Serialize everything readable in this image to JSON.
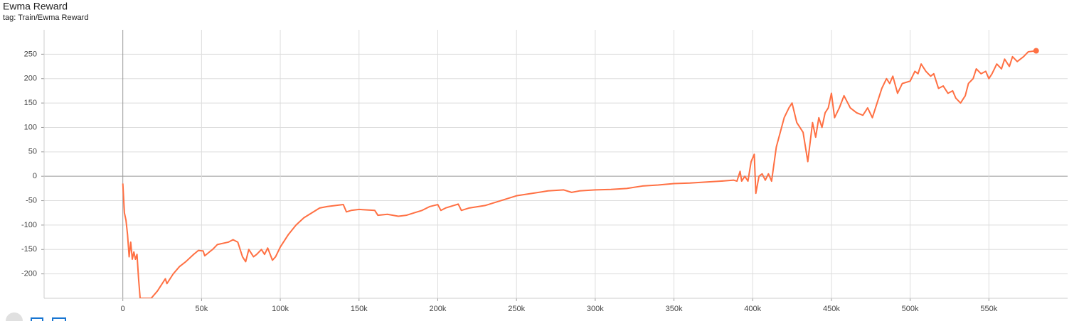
{
  "chart_data": {
    "type": "line",
    "title": "Ewma Reward",
    "subtitle": "tag: Train/Ewma Reward",
    "xlim": [
      -50000,
      600000
    ],
    "ylim": [
      -250,
      300
    ],
    "xticks": [
      {
        "value": 0,
        "label": "0"
      },
      {
        "value": 50000,
        "label": "50k"
      },
      {
        "value": 100000,
        "label": "100k"
      },
      {
        "value": 150000,
        "label": "150k"
      },
      {
        "value": 200000,
        "label": "200k"
      },
      {
        "value": 250000,
        "label": "250k"
      },
      {
        "value": 300000,
        "label": "300k"
      },
      {
        "value": 350000,
        "label": "350k"
      },
      {
        "value": 400000,
        "label": "400k"
      },
      {
        "value": 450000,
        "label": "450k"
      },
      {
        "value": 500000,
        "label": "500k"
      },
      {
        "value": 550000,
        "label": "550k"
      }
    ],
    "yticks": [
      -200,
      -150,
      -100,
      -50,
      0,
      50,
      100,
      150,
      200,
      250
    ],
    "grid": true,
    "series": [
      {
        "color": "#ff7043",
        "x": [
          0,
          1000,
          2000,
          3000,
          4000,
          5000,
          6000,
          7000,
          8000,
          9000,
          10000,
          11000,
          18000,
          22000,
          27000,
          28000,
          32000,
          36000,
          40000,
          45000,
          48000,
          51000,
          52000,
          55000,
          57000,
          60000,
          67000,
          70000,
          73000,
          76000,
          78000,
          80000,
          83000,
          85000,
          88000,
          90000,
          92000,
          95000,
          97000,
          100000,
          105000,
          110000,
          115000,
          120000,
          125000,
          130000,
          140000,
          142000,
          145000,
          150000,
          160000,
          162000,
          168000,
          175000,
          180000,
          185000,
          190000,
          195000,
          200000,
          202000,
          205000,
          210000,
          213000,
          215000,
          220000,
          230000,
          240000,
          250000,
          260000,
          270000,
          280000,
          285000,
          290000,
          300000,
          310000,
          320000,
          330000,
          340000,
          350000,
          360000,
          370000,
          380000,
          388000,
          390000,
          392000,
          393000,
          395000,
          397000,
          399000,
          401000,
          402000,
          404000,
          406000,
          408000,
          410000,
          412000,
          415000,
          420000,
          423000,
          425000,
          428000,
          432000,
          435000,
          438000,
          440000,
          442000,
          444000,
          446000,
          448000,
          450000,
          452000,
          455000,
          458000,
          462000,
          466000,
          470000,
          473000,
          476000,
          478000,
          482000,
          485000,
          487000,
          489000,
          492000,
          495000,
          500000,
          503000,
          505000,
          507000,
          510000,
          513000,
          515000,
          518000,
          521000,
          524000,
          527000,
          529000,
          532000,
          535000,
          537000,
          540000,
          542000,
          545000,
          548000,
          550000,
          552000,
          555000,
          558000,
          560000,
          563000,
          565000,
          568000,
          572000,
          575000,
          580000
        ],
        "values": [
          -15,
          -75,
          -90,
          -120,
          -165,
          -135,
          -170,
          -155,
          -170,
          -160,
          -210,
          -250,
          -250,
          -235,
          -210,
          -220,
          -200,
          -185,
          -175,
          -160,
          -152,
          -153,
          -163,
          -155,
          -150,
          -140,
          -135,
          -130,
          -135,
          -165,
          -175,
          -150,
          -165,
          -160,
          -150,
          -160,
          -147,
          -172,
          -165,
          -145,
          -120,
          -100,
          -85,
          -75,
          -65,
          -62,
          -58,
          -73,
          -70,
          -68,
          -70,
          -80,
          -78,
          -82,
          -80,
          -75,
          -70,
          -62,
          -58,
          -70,
          -65,
          -60,
          -57,
          -70,
          -65,
          -60,
          -50,
          -40,
          -35,
          -30,
          -28,
          -33,
          -30,
          -28,
          -27,
          -25,
          -20,
          -18,
          -15,
          -14,
          -12,
          -10,
          -8,
          -10,
          10,
          -10,
          0,
          -10,
          30,
          45,
          -35,
          0,
          5,
          -8,
          5,
          -10,
          60,
          120,
          140,
          150,
          110,
          90,
          30,
          110,
          80,
          120,
          100,
          130,
          140,
          170,
          120,
          140,
          165,
          140,
          130,
          125,
          140,
          120,
          140,
          180,
          200,
          190,
          205,
          170,
          190,
          195,
          215,
          210,
          230,
          215,
          205,
          210,
          180,
          185,
          170,
          175,
          160,
          150,
          165,
          190,
          200,
          220,
          210,
          215,
          200,
          210,
          230,
          220,
          240,
          225,
          245,
          235,
          245,
          255,
          257
        ]
      }
    ]
  }
}
